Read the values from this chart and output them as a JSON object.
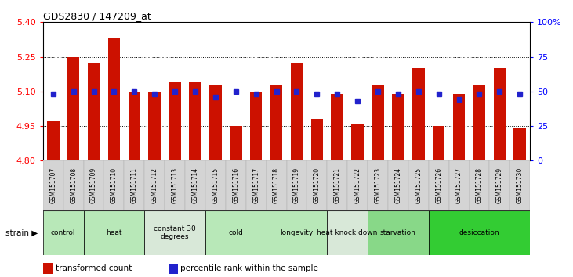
{
  "title": "GDS2830 / 147209_at",
  "samples": [
    "GSM151707",
    "GSM151708",
    "GSM151709",
    "GSM151710",
    "GSM151711",
    "GSM151712",
    "GSM151713",
    "GSM151714",
    "GSM151715",
    "GSM151716",
    "GSM151717",
    "GSM151718",
    "GSM151719",
    "GSM151720",
    "GSM151721",
    "GSM151722",
    "GSM151723",
    "GSM151724",
    "GSM151725",
    "GSM151726",
    "GSM151727",
    "GSM151728",
    "GSM151729",
    "GSM151730"
  ],
  "bar_values": [
    4.97,
    5.25,
    5.22,
    5.33,
    5.1,
    5.1,
    5.14,
    5.14,
    5.13,
    4.95,
    5.1,
    5.13,
    5.22,
    4.98,
    5.09,
    4.96,
    5.13,
    5.09,
    5.2,
    4.95,
    5.09,
    5.13,
    5.2,
    4.94
  ],
  "percentile_values": [
    48,
    50,
    50,
    50,
    50,
    48,
    50,
    50,
    46,
    50,
    48,
    50,
    50,
    48,
    48,
    43,
    50,
    48,
    50,
    48,
    44,
    48,
    50,
    48
  ],
  "groups": [
    {
      "label": "control",
      "start": 0,
      "end": 2,
      "color": "#b8e8b8"
    },
    {
      "label": "heat",
      "start": 2,
      "end": 5,
      "color": "#b8e8b8"
    },
    {
      "label": "constant 30\ndegrees",
      "start": 5,
      "end": 8,
      "color": "#d8e8d8"
    },
    {
      "label": "cold",
      "start": 8,
      "end": 11,
      "color": "#b8e8b8"
    },
    {
      "label": "longevity",
      "start": 11,
      "end": 14,
      "color": "#b8e8b8"
    },
    {
      "label": "heat knock down",
      "start": 14,
      "end": 16,
      "color": "#d8e8d8"
    },
    {
      "label": "starvation",
      "start": 16,
      "end": 19,
      "color": "#88d888"
    },
    {
      "label": "desiccation",
      "start": 19,
      "end": 24,
      "color": "#33cc33"
    }
  ],
  "ylim_left": [
    4.8,
    5.4
  ],
  "ylim_right": [
    0,
    100
  ],
  "yticks_left": [
    4.8,
    4.95,
    5.1,
    5.25,
    5.4
  ],
  "yticks_right": [
    0,
    25,
    50,
    75,
    100
  ],
  "bar_color": "#cc1100",
  "dot_color": "#2222cc",
  "bg_color": "#ffffff",
  "strain_label": "strain",
  "legend_bar": "transformed count",
  "legend_dot": "percentile rank within the sample"
}
